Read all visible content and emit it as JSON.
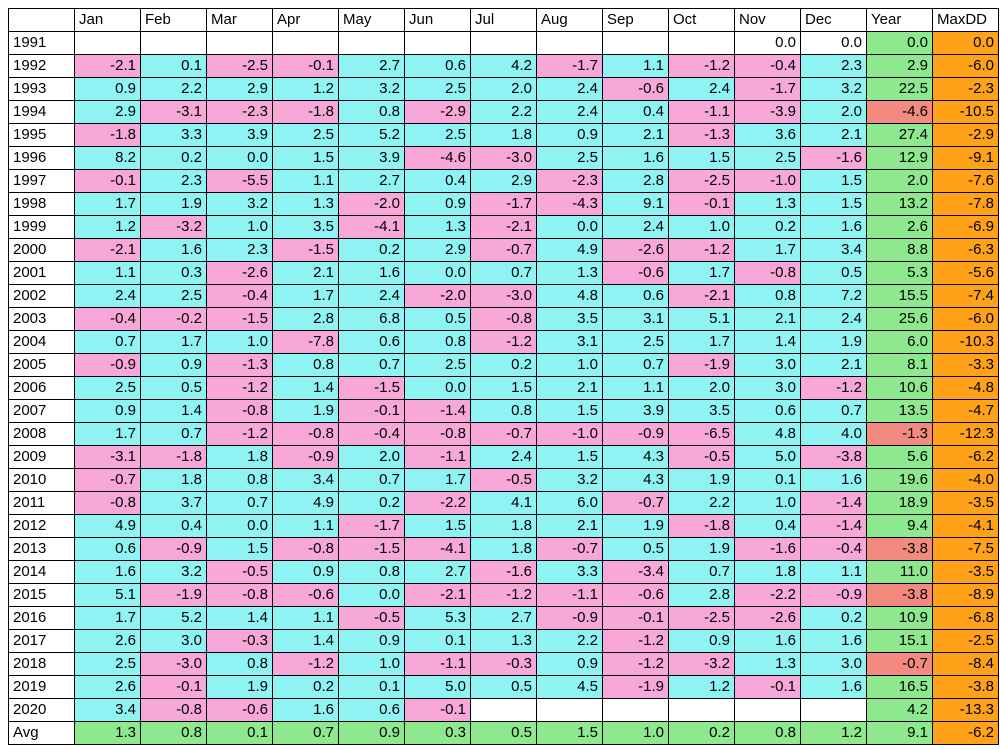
{
  "chart_data": {
    "type": "table",
    "columns": [
      "",
      "Jan",
      "Feb",
      "Mar",
      "Apr",
      "May",
      "Jun",
      "Jul",
      "Aug",
      "Sep",
      "Oct",
      "Nov",
      "Dec",
      "Year",
      "MaxDD"
    ],
    "rows": [
      [
        "1991",
        "",
        "",
        "",
        "",
        "",
        "",
        "",
        "",
        "",
        "",
        "0.0",
        "0.0",
        "0.0",
        "0.0"
      ],
      [
        "1992",
        "-2.1",
        "0.1",
        "-2.5",
        "-0.1",
        "2.7",
        "0.6",
        "4.2",
        "-1.7",
        "1.1",
        "-1.2",
        "-0.4",
        "2.3",
        "2.9",
        "-6.0"
      ],
      [
        "1993",
        "0.9",
        "2.2",
        "2.9",
        "1.2",
        "3.2",
        "2.5",
        "2.0",
        "2.4",
        "-0.6",
        "2.4",
        "-1.7",
        "3.2",
        "22.5",
        "-2.3"
      ],
      [
        "1994",
        "2.9",
        "-3.1",
        "-2.3",
        "-1.8",
        "0.8",
        "-2.9",
        "2.2",
        "2.4",
        "0.4",
        "-1.1",
        "-3.9",
        "2.0",
        "-4.6",
        "-10.5"
      ],
      [
        "1995",
        "-1.8",
        "3.3",
        "3.9",
        "2.5",
        "5.2",
        "2.5",
        "1.8",
        "0.9",
        "2.1",
        "-1.3",
        "3.6",
        "2.1",
        "27.4",
        "-2.9"
      ],
      [
        "1996",
        "8.2",
        "0.2",
        "0.0",
        "1.5",
        "3.9",
        "-4.6",
        "-3.0",
        "2.5",
        "1.6",
        "1.5",
        "2.5",
        "-1.6",
        "12.9",
        "-9.1"
      ],
      [
        "1997",
        "-0.1",
        "2.3",
        "-5.5",
        "1.1",
        "2.7",
        "0.4",
        "2.9",
        "-2.3",
        "2.8",
        "-2.5",
        "-1.0",
        "1.5",
        "2.0",
        "-7.6"
      ],
      [
        "1998",
        "1.7",
        "1.9",
        "3.2",
        "1.3",
        "-2.0",
        "0.9",
        "-1.7",
        "-4.3",
        "9.1",
        "-0.1",
        "1.3",
        "1.5",
        "13.2",
        "-7.8"
      ],
      [
        "1999",
        "1.2",
        "-3.2",
        "1.0",
        "3.5",
        "-4.1",
        "1.3",
        "-2.1",
        "0.0",
        "2.4",
        "1.0",
        "0.2",
        "1.6",
        "2.6",
        "-6.9"
      ],
      [
        "2000",
        "-2.1",
        "1.6",
        "2.3",
        "-1.5",
        "0.2",
        "2.9",
        "-0.7",
        "4.9",
        "-2.6",
        "-1.2",
        "1.7",
        "3.4",
        "8.8",
        "-6.3"
      ],
      [
        "2001",
        "1.1",
        "0.3",
        "-2.6",
        "2.1",
        "1.6",
        "0.0",
        "0.7",
        "1.3",
        "-0.6",
        "1.7",
        "-0.8",
        "0.5",
        "5.3",
        "-5.6"
      ],
      [
        "2002",
        "2.4",
        "2.5",
        "-0.4",
        "1.7",
        "2.4",
        "-2.0",
        "-3.0",
        "4.8",
        "0.6",
        "-2.1",
        "0.8",
        "7.2",
        "15.5",
        "-7.4"
      ],
      [
        "2003",
        "-0.4",
        "-0.2",
        "-1.5",
        "2.8",
        "6.8",
        "0.5",
        "-0.8",
        "3.5",
        "3.1",
        "5.1",
        "2.1",
        "2.4",
        "25.6",
        "-6.0"
      ],
      [
        "2004",
        "0.7",
        "1.7",
        "1.0",
        "-7.8",
        "0.6",
        "0.8",
        "-1.2",
        "3.1",
        "2.5",
        "1.7",
        "1.4",
        "1.9",
        "6.0",
        "-10.3"
      ],
      [
        "2005",
        "-0.9",
        "0.9",
        "-1.3",
        "0.8",
        "0.7",
        "2.5",
        "0.2",
        "1.0",
        "0.7",
        "-1.9",
        "3.0",
        "2.1",
        "8.1",
        "-3.3"
      ],
      [
        "2006",
        "2.5",
        "0.5",
        "-1.2",
        "1.4",
        "-1.5",
        "0.0",
        "1.5",
        "2.1",
        "1.1",
        "2.0",
        "3.0",
        "-1.2",
        "10.6",
        "-4.8"
      ],
      [
        "2007",
        "0.9",
        "1.4",
        "-0.8",
        "1.9",
        "-0.1",
        "-1.4",
        "0.8",
        "1.5",
        "3.9",
        "3.5",
        "0.6",
        "0.7",
        "13.5",
        "-4.7"
      ],
      [
        "2008",
        "1.7",
        "0.7",
        "-1.2",
        "-0.8",
        "-0.4",
        "-0.8",
        "-0.7",
        "-1.0",
        "-0.9",
        "-6.5",
        "4.8",
        "4.0",
        "-1.3",
        "-12.3"
      ],
      [
        "2009",
        "-3.1",
        "-1.8",
        "1.8",
        "-0.9",
        "2.0",
        "-1.1",
        "2.4",
        "1.5",
        "4.3",
        "-0.5",
        "5.0",
        "-3.8",
        "5.6",
        "-6.2"
      ],
      [
        "2010",
        "-0.7",
        "1.8",
        "0.8",
        "3.4",
        "0.7",
        "1.7",
        "-0.5",
        "3.2",
        "4.3",
        "1.9",
        "0.1",
        "1.6",
        "19.6",
        "-4.0"
      ],
      [
        "2011",
        "-0.8",
        "3.7",
        "0.7",
        "4.9",
        "0.2",
        "-2.2",
        "4.1",
        "6.0",
        "-0.7",
        "2.2",
        "1.0",
        "-1.4",
        "18.9",
        "-3.5"
      ],
      [
        "2012",
        "4.9",
        "0.4",
        "0.0",
        "1.1",
        "-1.7",
        "1.5",
        "1.8",
        "2.1",
        "1.9",
        "-1.8",
        "0.4",
        "-1.4",
        "9.4",
        "-4.1"
      ],
      [
        "2013",
        "0.6",
        "-0.9",
        "1.5",
        "-0.8",
        "-1.5",
        "-4.1",
        "1.8",
        "-0.7",
        "0.5",
        "1.9",
        "-1.6",
        "-0.4",
        "-3.8",
        "-7.5"
      ],
      [
        "2014",
        "1.6",
        "3.2",
        "-0.5",
        "0.9",
        "0.8",
        "2.7",
        "-1.6",
        "3.3",
        "-3.4",
        "0.7",
        "1.8",
        "1.1",
        "11.0",
        "-3.5"
      ],
      [
        "2015",
        "5.1",
        "-1.9",
        "-0.8",
        "-0.6",
        "0.0",
        "-2.1",
        "-1.2",
        "-1.1",
        "-0.6",
        "2.8",
        "-2.2",
        "-0.9",
        "-3.8",
        "-8.9"
      ],
      [
        "2016",
        "1.7",
        "5.2",
        "1.4",
        "1.1",
        "-0.5",
        "5.3",
        "2.7",
        "-0.9",
        "-0.1",
        "-2.5",
        "-2.6",
        "0.2",
        "10.9",
        "-6.8"
      ],
      [
        "2017",
        "2.6",
        "3.0",
        "-0.3",
        "1.4",
        "0.9",
        "0.1",
        "1.3",
        "2.2",
        "-1.2",
        "0.9",
        "1.6",
        "1.6",
        "15.1",
        "-2.5"
      ],
      [
        "2018",
        "2.5",
        "-3.0",
        "0.8",
        "-1.2",
        "1.0",
        "-1.1",
        "-0.3",
        "0.9",
        "-1.2",
        "-3.2",
        "1.3",
        "3.0",
        "-0.7",
        "-8.4"
      ],
      [
        "2019",
        "2.6",
        "-0.1",
        "1.9",
        "0.2",
        "0.1",
        "5.0",
        "0.5",
        "4.5",
        "-1.9",
        "1.2",
        "-0.1",
        "1.6",
        "16.5",
        "-3.8"
      ],
      [
        "2020",
        "3.4",
        "-0.8",
        "-0.6",
        "1.6",
        "0.6",
        "-0.1",
        "",
        "",
        "",
        "",
        "",
        "",
        "4.2",
        "-13.3"
      ],
      [
        "Avg",
        "1.3",
        "0.8",
        "0.1",
        "0.7",
        "0.9",
        "0.3",
        "0.5",
        "1.5",
        "1.0",
        "0.2",
        "0.8",
        "1.2",
        "9.1",
        "-6.2"
      ]
    ],
    "colors": {
      "positive_month": "#8ff3f3",
      "negative_month": "#f7a8d8",
      "positive_year": "#8ee88e",
      "negative_year": "#f28a80",
      "maxdd": "#ffa21a",
      "avg": "#8ee88e",
      "empty": "#ffffff"
    }
  }
}
